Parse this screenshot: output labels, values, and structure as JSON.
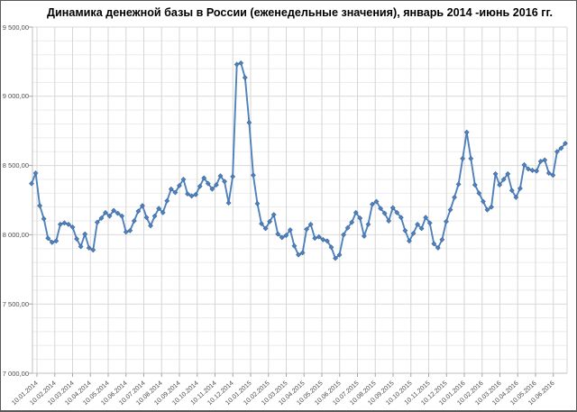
{
  "title": "Динамика денежной базы в России (еженедельные значения),  январь 2014 -июнь 2016 гг.",
  "chart_data": {
    "type": "line",
    "title": "Динамика денежной базы в России (еженедельные значения),  январь 2014 -июнь 2016 гг.",
    "frequency": "weekly",
    "values": [
      8370,
      8445,
      8210,
      8115,
      7975,
      7945,
      7955,
      8075,
      8085,
      8075,
      8055,
      7970,
      7915,
      8005,
      7905,
      7890,
      8090,
      8120,
      8160,
      8135,
      8175,
      8155,
      8135,
      8020,
      8030,
      8100,
      8170,
      8210,
      8125,
      8065,
      8135,
      8190,
      8160,
      8245,
      8330,
      8305,
      8355,
      8400,
      8295,
      8280,
      8290,
      8350,
      8410,
      8370,
      8330,
      8360,
      8425,
      8385,
      8230,
      8420,
      9230,
      9240,
      9135,
      8810,
      8430,
      8225,
      8080,
      8045,
      8095,
      8145,
      8005,
      7980,
      7995,
      8035,
      7920,
      7855,
      7870,
      8040,
      8075,
      7975,
      7985,
      7965,
      7955,
      7910,
      7830,
      7855,
      8000,
      8050,
      8090,
      8160,
      8120,
      7990,
      8075,
      8220,
      8240,
      8190,
      8155,
      8100,
      8195,
      8160,
      8125,
      8030,
      7955,
      8010,
      8075,
      8045,
      8125,
      8085,
      7935,
      7905,
      7965,
      8095,
      8180,
      8270,
      8365,
      8550,
      8740,
      8550,
      8360,
      8300,
      8240,
      8180,
      8200,
      8440,
      8360,
      8400,
      8440,
      8320,
      8270,
      8335,
      8505,
      8475,
      8465,
      8460,
      8530,
      8540,
      8445,
      8430,
      8600,
      8625,
      8660
    ],
    "x_tick_labels": [
      "10.01.2014",
      "10.02.2014",
      "10.03.2014",
      "10.04.2014",
      "10.05.2014",
      "10.06.2014",
      "10.07.2014",
      "10.08.2014",
      "10.09.2014",
      "10.10.2014",
      "10.11.2014",
      "10.12.2014",
      "10.01.2015",
      "10.02.2015",
      "10.03.2015",
      "10.04.2015",
      "10.05.2015",
      "10.06.2015",
      "10.07.2015",
      "10.08.2015",
      "10.09.2015",
      "10.10.2015",
      "10.11.2015",
      "10.12.2015",
      "10.01.2016",
      "10.02.2016",
      "10.03.2016",
      "10.04.2016",
      "10.05.2016",
      "10.06.2016"
    ],
    "y_tick_labels": [
      "9 500,00",
      "9 000,00",
      "8 500,00",
      "8 000,00",
      "7 500,00",
      "7 000,00"
    ],
    "y_tick_values": [
      9500,
      9000,
      8500,
      8000,
      7500,
      7000
    ],
    "ylim": [
      7000,
      9500
    ],
    "y_major_step": 500,
    "y_minor_step": 100,
    "grid": true,
    "legend": "none",
    "marker": "diamond",
    "line_color": "#4F81BD"
  }
}
